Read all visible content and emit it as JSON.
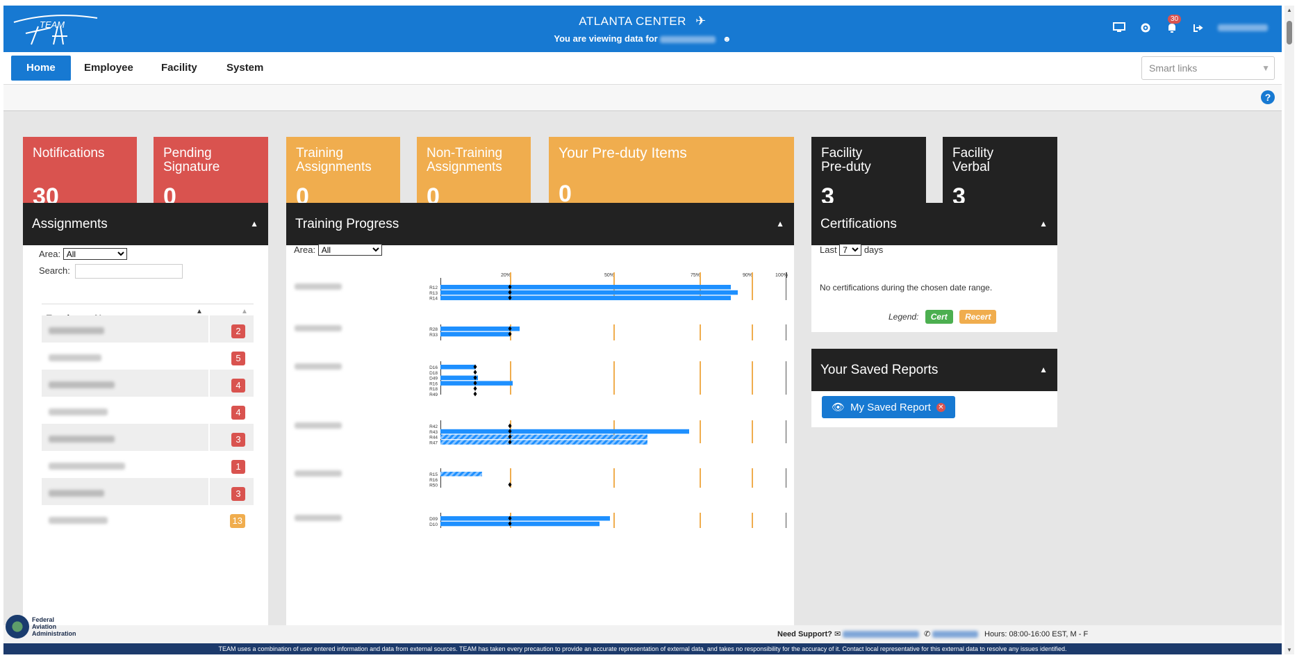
{
  "header": {
    "center_title": "ATLANTA CENTER",
    "viewing_prefix": "You are viewing data for",
    "notification_count": "30"
  },
  "nav": {
    "items": [
      "Home",
      "Employee",
      "Facility",
      "System"
    ],
    "smart_links_placeholder": "Smart links"
  },
  "tiles": [
    {
      "label": "Notifications",
      "value": "30",
      "color": "#d9534f"
    },
    {
      "label": "Pending Signature",
      "value": "0",
      "color": "#d9534f"
    },
    {
      "label": "Training Assignments",
      "value": "0",
      "color": "#f0ad4e"
    },
    {
      "label": "Non-Training Assignments",
      "value": "0",
      "color": "#f0ad4e"
    },
    {
      "label": "Your Pre-duty Items",
      "value": "0",
      "color": "#f0ad4e"
    },
    {
      "label": "Facility Pre-duty",
      "value": "3",
      "color": "#222222"
    },
    {
      "label": "Facility Verbal",
      "value": "3",
      "color": "#222222"
    }
  ],
  "assignments": {
    "title": "Assignments",
    "area_label": "Area:",
    "area_value": "All",
    "search_label": "Search:",
    "column_header": "Employee Name",
    "counts": [
      {
        "value": "2",
        "color": "red"
      },
      {
        "value": "5",
        "color": "red"
      },
      {
        "value": "4",
        "color": "red"
      },
      {
        "value": "4",
        "color": "red"
      },
      {
        "value": "3",
        "color": "red"
      },
      {
        "value": "1",
        "color": "red"
      },
      {
        "value": "3",
        "color": "red"
      },
      {
        "value": "13",
        "color": "orange"
      }
    ]
  },
  "training": {
    "title": "Training Progress",
    "area_label": "Area:",
    "area_value": "All",
    "milestones": [
      "20%",
      "50%",
      "75%",
      "90%",
      "100%"
    ],
    "groups": [
      {
        "rows": [
          "R12",
          "R13",
          "R14"
        ]
      },
      {
        "rows": [
          "R28",
          "R33"
        ]
      },
      {
        "rows": [
          "D16",
          "D18",
          "D49",
          "R16",
          "R18",
          "R49"
        ]
      },
      {
        "rows": [
          "R42",
          "R43",
          "R44",
          "R47"
        ]
      },
      {
        "rows": [
          "R15",
          "R16",
          "R50"
        ]
      },
      {
        "rows": [
          "D09",
          "D10"
        ]
      }
    ]
  },
  "certifications": {
    "title": "Certifications",
    "last_label": "Last",
    "days_value": "7",
    "days_label": "days",
    "empty_message": "No certifications during the chosen date range.",
    "legend_label": "Legend:",
    "legend_cert": "Cert",
    "legend_recert": "Recert"
  },
  "saved_reports": {
    "title": "Your Saved Reports",
    "button_label": "My Saved Report"
  },
  "footer": {
    "faa_name": "Federal Aviation Administration",
    "need_support": "Need Support?",
    "hours": "Hours: 08:00-16:00 EST, M - F",
    "disclaimer": "TEAM uses a combination of user entered information and data from external sources. TEAM has taken every precaution to provide an accurate representation of external data, and takes no responsibility for the accuracy of it. Contact local representative for this external data to resolve any issues identified."
  }
}
